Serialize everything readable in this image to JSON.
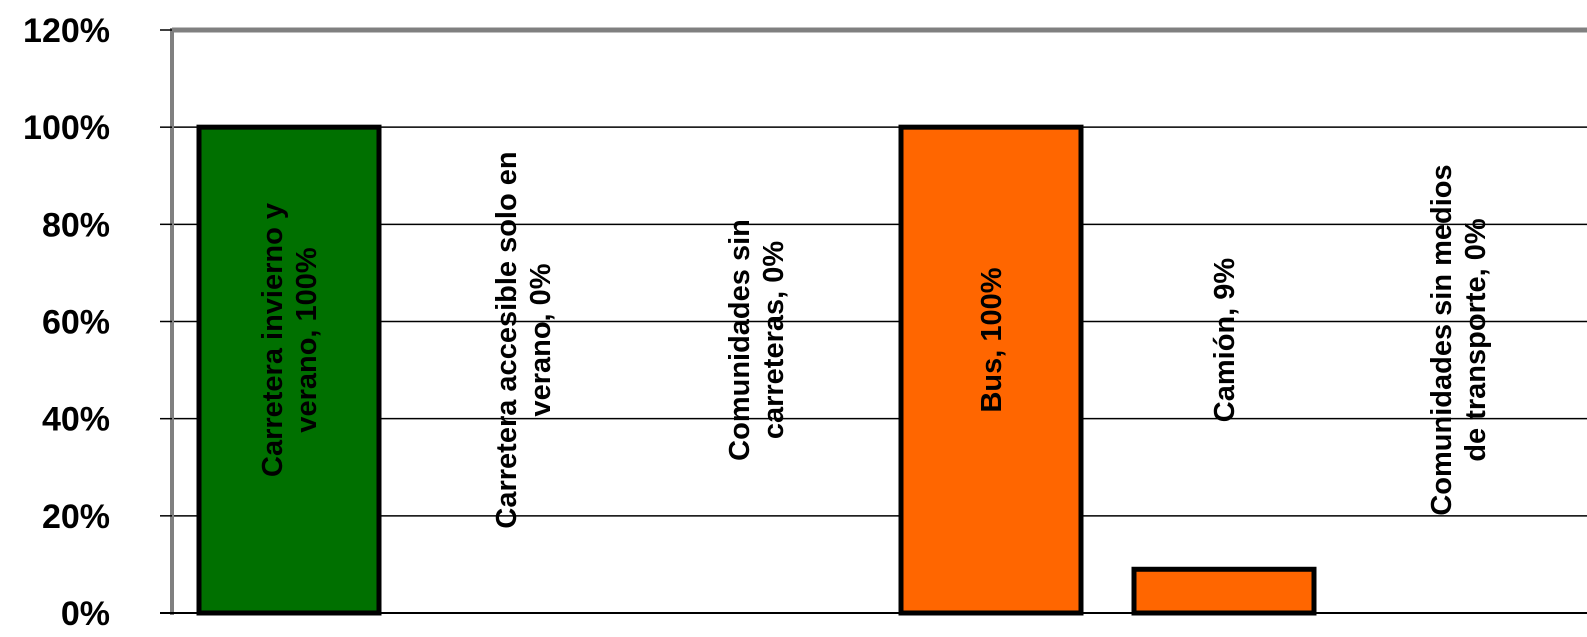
{
  "chart_data": {
    "type": "bar",
    "title": "",
    "xlabel": "",
    "ylabel": "",
    "ylim": [
      0,
      1.2
    ],
    "yticks": [
      0,
      0.2,
      0.4,
      0.6,
      0.8,
      1.0,
      1.2
    ],
    "ytick_labels": [
      "0%",
      "20%",
      "40%",
      "60%",
      "80%",
      "100%",
      "120%"
    ],
    "grid": true,
    "legend": "none",
    "categories": [
      "Carretera invierno y verano",
      "Carretera accesible solo en verano",
      "Comunidades sin carreteras",
      "Bus",
      "Camión",
      "Comunidades sin medios de transporte"
    ],
    "values": [
      1.0,
      0.0,
      0.0,
      1.0,
      0.09,
      0.0
    ],
    "bars": [
      {
        "label_lines": [
          "Carretera invierno y",
          "verano, 100%"
        ],
        "value": 1.0,
        "color": "#007000"
      },
      {
        "label_lines": [
          "Carretera accesible solo en",
          "verano, 0%"
        ],
        "value": 0.0,
        "color": "#007000"
      },
      {
        "label_lines": [
          "Comunidades sin",
          "carreteras, 0%"
        ],
        "value": 0.0,
        "color": "#007000"
      },
      {
        "label_lines": [
          "Bus, 100%"
        ],
        "value": 1.0,
        "color": "#ff6600"
      },
      {
        "label_lines": [
          "Camión, 9%"
        ],
        "value": 0.09,
        "color": "#ff6600"
      },
      {
        "label_lines": [
          "Comunidades sin medios",
          "de transporte, 0%"
        ],
        "value": 0.0,
        "color": "#ff6600"
      }
    ]
  }
}
